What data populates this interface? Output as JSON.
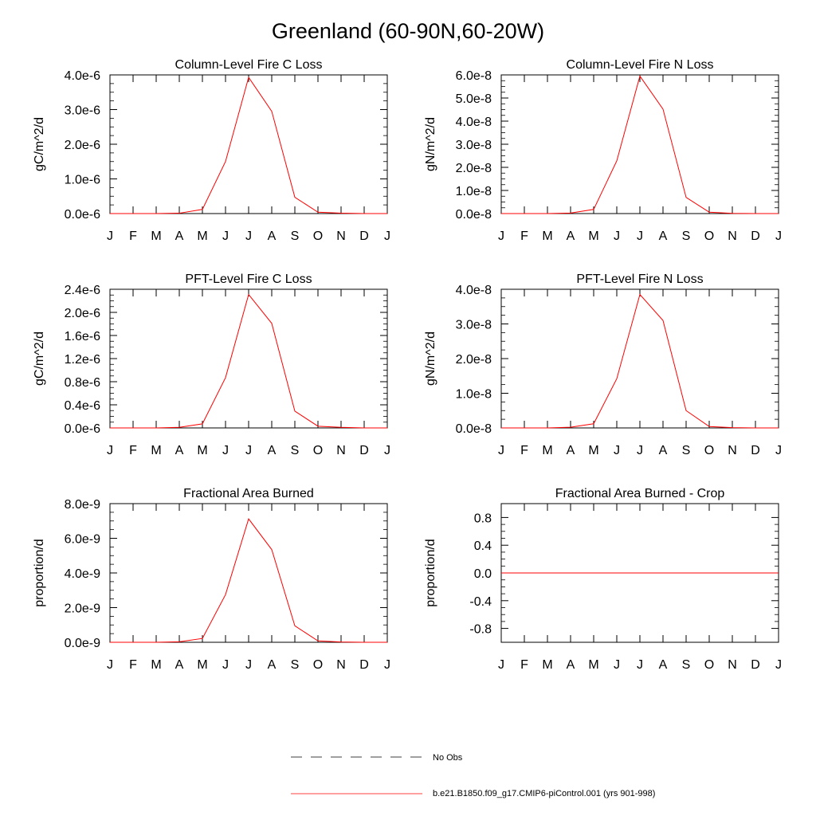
{
  "figure": {
    "title": "Greenland (60-90N,60-20W)"
  },
  "legend": {
    "entries": [
      {
        "label": "No Obs",
        "style": "dashed",
        "color": "#000000"
      },
      {
        "label": "b.e21.B1850.f09_g17.CMIP6-piControl.001 (yrs 901-998)",
        "style": "solid",
        "color": "#ff0000"
      }
    ]
  },
  "chart_data": [
    {
      "type": "line",
      "title": "Column-Level Fire C Loss",
      "ylabel": "gC/m^2/d",
      "categories": [
        "J",
        "F",
        "M",
        "A",
        "M",
        "J",
        "J",
        "A",
        "S",
        "O",
        "N",
        "D",
        "J"
      ],
      "ylim": [
        0,
        4e-06
      ],
      "yticks": [
        0,
        1e-06,
        2e-06,
        3e-06,
        4e-06
      ],
      "yticklabels": [
        "0.0e-6",
        "1.0e-6",
        "2.0e-6",
        "3.0e-6",
        "4.0e-6"
      ],
      "series": [
        {
          "name": "b.e21.B1850.f09_g17.CMIP6-piControl.001 (yrs 901-998)",
          "color": "#ff0000",
          "values": [
            0,
            0,
            0,
            1e-08,
            1.2e-07,
            1.5e-06,
            3.93e-06,
            2.95e-06,
            4.7e-07,
            4e-08,
            1e-08,
            0,
            0
          ]
        }
      ]
    },
    {
      "type": "line",
      "title": "Column-Level Fire N Loss",
      "ylabel": "gN/m^2/d",
      "categories": [
        "J",
        "F",
        "M",
        "A",
        "M",
        "J",
        "J",
        "A",
        "S",
        "O",
        "N",
        "D",
        "J"
      ],
      "ylim": [
        0,
        6e-08
      ],
      "yticks": [
        0,
        1e-08,
        2e-08,
        3e-08,
        4e-08,
        5e-08,
        6e-08
      ],
      "yticklabels": [
        "0.0e-8",
        "1.0e-8",
        "2.0e-8",
        "3.0e-8",
        "4.0e-8",
        "5.0e-8",
        "6.0e-8"
      ],
      "series": [
        {
          "name": "b.e21.B1850.f09_g17.CMIP6-piControl.001 (yrs 901-998)",
          "color": "#ff0000",
          "values": [
            0,
            0,
            0,
            2e-10,
            1.8e-09,
            2.28e-08,
            5.95e-08,
            4.52e-08,
            7e-09,
            6e-10,
            1e-10,
            0,
            0
          ]
        }
      ]
    },
    {
      "type": "line",
      "title": "PFT-Level Fire C Loss",
      "ylabel": "gC/m^2/d",
      "categories": [
        "J",
        "F",
        "M",
        "A",
        "M",
        "J",
        "J",
        "A",
        "S",
        "O",
        "N",
        "D",
        "J"
      ],
      "ylim": [
        0,
        2.4e-06
      ],
      "yticks": [
        0,
        4e-07,
        8e-07,
        1.2e-06,
        1.6e-06,
        2e-06,
        2.4e-06
      ],
      "yticklabels": [
        "0.0e-6",
        "0.4e-6",
        "0.8e-6",
        "1.2e-6",
        "1.6e-6",
        "2.0e-6",
        "2.4e-6"
      ],
      "series": [
        {
          "name": "b.e21.B1850.f09_g17.CMIP6-piControl.001 (yrs 901-998)",
          "color": "#ff0000",
          "values": [
            0,
            0,
            0,
            1e-08,
            7e-08,
            8.7e-07,
            2.31e-06,
            1.81e-06,
            2.9e-07,
            3e-08,
            1e-08,
            0,
            0
          ]
        }
      ]
    },
    {
      "type": "line",
      "title": "PFT-Level Fire N Loss",
      "ylabel": "gN/m^2/d",
      "categories": [
        "J",
        "F",
        "M",
        "A",
        "M",
        "J",
        "J",
        "A",
        "S",
        "O",
        "N",
        "D",
        "J"
      ],
      "ylim": [
        0,
        4e-08
      ],
      "yticks": [
        0,
        1e-08,
        2e-08,
        3e-08,
        4e-08
      ],
      "yticklabels": [
        "0.0e-8",
        "1.0e-8",
        "2.0e-8",
        "3.0e-8",
        "4.0e-8"
      ],
      "series": [
        {
          "name": "b.e21.B1850.f09_g17.CMIP6-piControl.001 (yrs 901-998)",
          "color": "#ff0000",
          "values": [
            0,
            0,
            0,
            2e-10,
            1.2e-09,
            1.42e-08,
            3.85e-08,
            3.1e-08,
            5e-09,
            4e-10,
            1e-10,
            0,
            0
          ]
        }
      ]
    },
    {
      "type": "line",
      "title": "Fractional Area Burned",
      "ylabel": "proportion/d",
      "categories": [
        "J",
        "F",
        "M",
        "A",
        "M",
        "J",
        "J",
        "A",
        "S",
        "O",
        "N",
        "D",
        "J"
      ],
      "ylim": [
        0,
        8e-09
      ],
      "yticks": [
        0,
        2e-09,
        4e-09,
        6e-09,
        8e-09
      ],
      "yticklabels": [
        "0.0e-9",
        "2.0e-9",
        "4.0e-9",
        "6.0e-9",
        "8.0e-9"
      ],
      "series": [
        {
          "name": "b.e21.B1850.f09_g17.CMIP6-piControl.001 (yrs 901-998)",
          "color": "#ff0000",
          "values": [
            0,
            0,
            0,
            3e-11,
            2.2e-10,
            2.75e-09,
            7.12e-09,
            5.35e-09,
            9.5e-10,
            8e-11,
            2e-11,
            0,
            0
          ]
        }
      ]
    },
    {
      "type": "line",
      "title": "Fractional Area Burned - Crop",
      "ylabel": "proportion/d",
      "categories": [
        "J",
        "F",
        "M",
        "A",
        "M",
        "J",
        "J",
        "A",
        "S",
        "O",
        "N",
        "D",
        "J"
      ],
      "ylim": [
        -1.0,
        1.0
      ],
      "yticks": [
        -0.8,
        -0.4,
        0.0,
        0.4,
        0.8
      ],
      "yticklabels": [
        "-0.8",
        "-0.4",
        "0.0",
        "0.4",
        "0.8"
      ],
      "series": [
        {
          "name": "b.e21.B1850.f09_g17.CMIP6-piControl.001 (yrs 901-998)",
          "color": "#ff0000",
          "values": [
            0,
            0,
            0,
            0,
            0,
            0,
            0,
            0,
            0,
            0,
            0,
            0,
            0
          ]
        }
      ]
    }
  ]
}
